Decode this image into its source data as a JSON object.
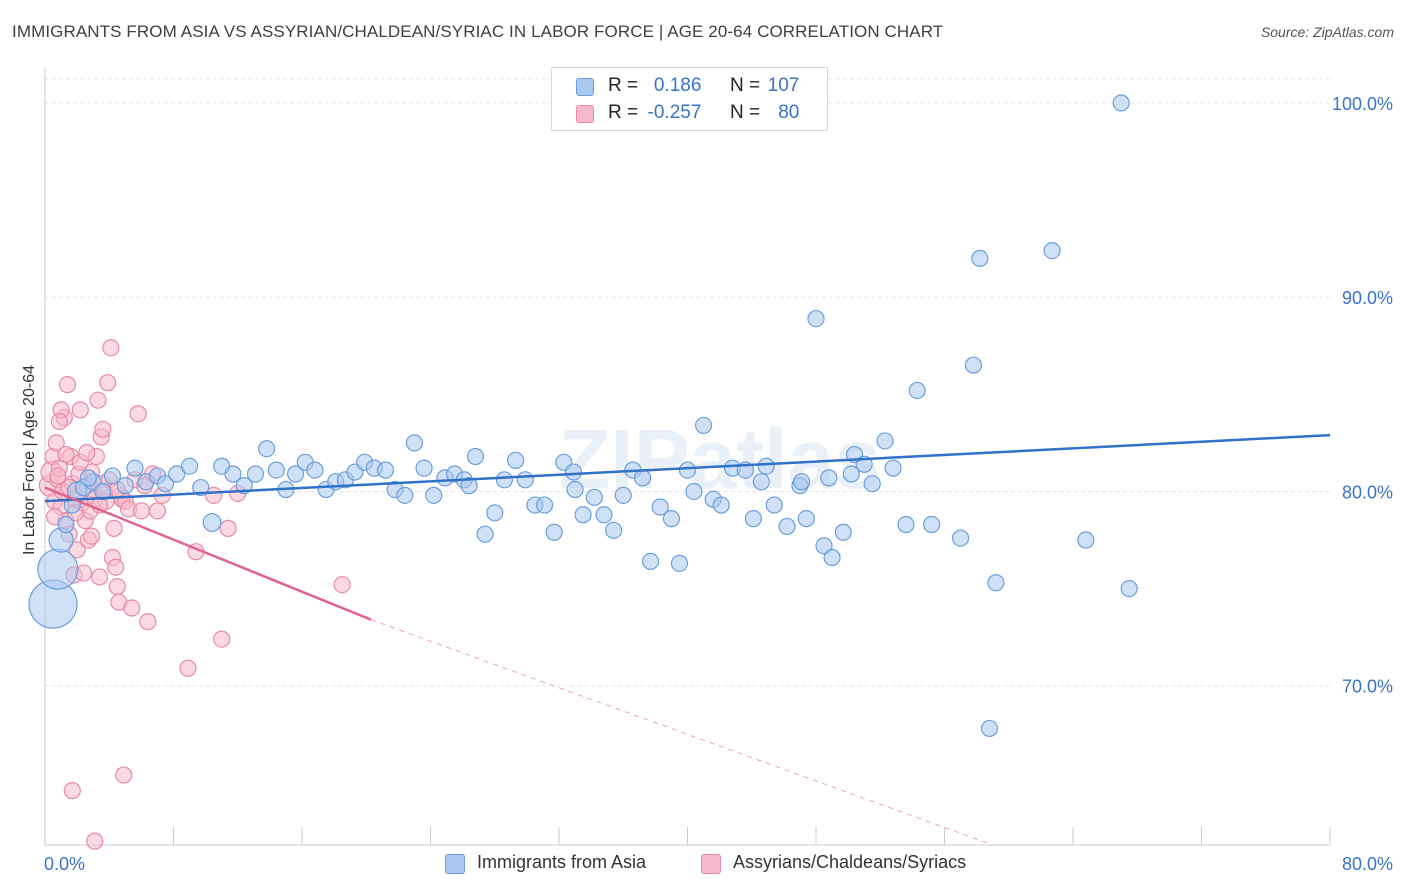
{
  "title": "IMMIGRANTS FROM ASIA VS ASSYRIAN/CHALDEAN/SYRIAC IN LABOR FORCE | AGE 20-64 CORRELATION CHART",
  "source": "Source: ZipAtlas.com",
  "watermark": "ZIPatlas",
  "legend_stats": [
    {
      "r_label": "R =",
      "r_value": "0.186",
      "n_label": "N =",
      "n_value": "107"
    },
    {
      "r_label": "R =",
      "r_value": "-0.257",
      "n_label": "N =",
      "n_value": "80"
    }
  ],
  "colors": {
    "blue_fill": "#a9c8f0",
    "blue_stroke": "#6b9fdc",
    "blue_line": "#2f72c8",
    "pink_fill": "#f5b9cb",
    "pink_stroke": "#e98aa8",
    "pink_line": "#e0648e",
    "grid": "#e6e6e6",
    "axis_label": "#3873c8"
  },
  "chart_data": {
    "type": "scatter",
    "title": "IMMIGRANTS FROM ASIA VS ASSYRIAN/CHALDEAN/SYRIAC IN LABOR FORCE | AGE 20-64 CORRELATION CHART",
    "xlabel": "",
    "ylabel": "In Labor Force | Age 20-64",
    "xlim": [
      0,
      80
    ],
    "ylim": [
      61.8,
      101.8
    ],
    "x_tick_labels": [
      "0.0%",
      "80.0%"
    ],
    "y_ticks": [
      70,
      80,
      90,
      100
    ],
    "y_tick_labels": [
      "70.0%",
      "80.0%",
      "90.0%",
      "100.0%"
    ],
    "grid": true,
    "legend_position": "bottom",
    "series": [
      {
        "name": "Immigrants from Asia",
        "color": "#6b9fdc",
        "r": 0.186,
        "n": 107,
        "trend": {
          "x": [
            0,
            80
          ],
          "y": [
            79.5,
            82.9
          ]
        },
        "points": [
          [
            0.5,
            74.2,
            3
          ],
          [
            0.8,
            76.0,
            2.5
          ],
          [
            1.0,
            77.5,
            1.5
          ],
          [
            1.3,
            78.3,
            1
          ],
          [
            1.7,
            79.3,
            1
          ],
          [
            2.0,
            80.0,
            1.2
          ],
          [
            2.4,
            80.2,
            1
          ],
          [
            3.0,
            80.5,
            1
          ],
          [
            3.6,
            80.0,
            1
          ],
          [
            4.2,
            80.8,
            1
          ],
          [
            5.0,
            80.3,
            1
          ],
          [
            5.6,
            81.2,
            1
          ],
          [
            6.3,
            80.5,
            1
          ],
          [
            7.0,
            80.8,
            1
          ],
          [
            7.5,
            80.4,
            1
          ],
          [
            8.2,
            80.9,
            1
          ],
          [
            9.0,
            81.3,
            1
          ],
          [
            9.7,
            80.2,
            1
          ],
          [
            10.4,
            78.4,
            1.1
          ],
          [
            11.0,
            81.3,
            1
          ],
          [
            11.7,
            80.9,
            1
          ],
          [
            12.4,
            80.3,
            1
          ],
          [
            13.1,
            80.9,
            1
          ],
          [
            13.8,
            82.2,
            1
          ],
          [
            14.4,
            81.1,
            1
          ],
          [
            15.0,
            80.1,
            1
          ],
          [
            15.6,
            80.9,
            1
          ],
          [
            16.2,
            81.5,
            1
          ],
          [
            16.8,
            81.1,
            1
          ],
          [
            17.5,
            80.1,
            1
          ],
          [
            18.1,
            80.5,
            1
          ],
          [
            18.7,
            80.6,
            1
          ],
          [
            19.3,
            81.0,
            1
          ],
          [
            19.9,
            81.5,
            1
          ],
          [
            20.5,
            81.2,
            1
          ],
          [
            21.2,
            81.1,
            1
          ],
          [
            21.8,
            80.1,
            1
          ],
          [
            22.4,
            79.8,
            1
          ],
          [
            23.0,
            82.5,
            1
          ],
          [
            23.6,
            81.2,
            1
          ],
          [
            24.2,
            79.8,
            1
          ],
          [
            24.9,
            80.7,
            1
          ],
          [
            25.5,
            80.9,
            1
          ],
          [
            26.1,
            80.6,
            1
          ],
          [
            26.8,
            81.8,
            1
          ],
          [
            27.4,
            77.8,
            1
          ],
          [
            28.0,
            78.9,
            1
          ],
          [
            28.6,
            80.6,
            1
          ],
          [
            29.3,
            81.6,
            1
          ],
          [
            29.9,
            80.6,
            1
          ],
          [
            30.5,
            79.3,
            1
          ],
          [
            31.1,
            79.3,
            1
          ],
          [
            31.7,
            77.9,
            1
          ],
          [
            32.3,
            81.5,
            1
          ],
          [
            32.9,
            81.0,
            1
          ],
          [
            33.5,
            78.8,
            1
          ],
          [
            34.2,
            79.7,
            1
          ],
          [
            34.8,
            78.8,
            1
          ],
          [
            35.4,
            78.0,
            1
          ],
          [
            36.0,
            79.8,
            1
          ],
          [
            36.6,
            81.1,
            1
          ],
          [
            37.2,
            80.7,
            1
          ],
          [
            37.7,
            76.4,
            1
          ],
          [
            38.3,
            79.2,
            1
          ],
          [
            39.0,
            78.6,
            1
          ],
          [
            39.5,
            76.3,
            1
          ],
          [
            40.0,
            81.1,
            1
          ],
          [
            40.4,
            80.0,
            1
          ],
          [
            41.0,
            83.4,
            1
          ],
          [
            41.6,
            79.6,
            1
          ],
          [
            42.1,
            79.3,
            1
          ],
          [
            42.8,
            81.2,
            1
          ],
          [
            43.6,
            81.1,
            1
          ],
          [
            44.1,
            78.6,
            1
          ],
          [
            44.9,
            81.3,
            1
          ],
          [
            45.4,
            79.3,
            1
          ],
          [
            46.2,
            78.2,
            1
          ],
          [
            47.0,
            80.3,
            1
          ],
          [
            47.4,
            78.6,
            1
          ],
          [
            48.0,
            88.9,
            1
          ],
          [
            48.5,
            77.2,
            1
          ],
          [
            49.0,
            76.6,
            1
          ],
          [
            49.7,
            77.9,
            1
          ],
          [
            50.4,
            81.9,
            1
          ],
          [
            51.0,
            81.4,
            1
          ],
          [
            51.5,
            80.4,
            1
          ],
          [
            52.3,
            82.6,
            1
          ],
          [
            52.8,
            81.2,
            1
          ],
          [
            53.6,
            78.3,
            1
          ],
          [
            54.3,
            85.2,
            1
          ],
          [
            55.2,
            78.3,
            1
          ],
          [
            57.0,
            77.6,
            1
          ],
          [
            57.8,
            86.5,
            1
          ],
          [
            58.2,
            92.0,
            1
          ],
          [
            58.8,
            67.8,
            1
          ],
          [
            59.2,
            75.3,
            1
          ],
          [
            62.7,
            92.4,
            1
          ],
          [
            64.8,
            77.5,
            1
          ],
          [
            67.0,
            100.0,
            1
          ],
          [
            67.5,
            75.0,
            1
          ],
          [
            48.8,
            80.7,
            1
          ],
          [
            50.2,
            80.9,
            1
          ],
          [
            33.0,
            80.1,
            1
          ],
          [
            26.4,
            80.3,
            1
          ],
          [
            44.6,
            80.5,
            1
          ],
          [
            2.7,
            80.7,
            1
          ],
          [
            47.1,
            80.5,
            1
          ]
        ]
      },
      {
        "name": "Assyrians/Chaldeans/Syriacs",
        "color": "#e98aa8",
        "r": -0.257,
        "n": 80,
        "trend": {
          "x": [
            0,
            20.3
          ],
          "y": [
            80.2,
            73.4
          ]
        },
        "trend_dashed": {
          "x": [
            20.3,
            59.0
          ],
          "y": [
            73.4,
            60.8
          ]
        },
        "points": [
          [
            0.3,
            80.3,
            1.3
          ],
          [
            0.4,
            81.0,
            1.3
          ],
          [
            0.5,
            81.8,
            1
          ],
          [
            0.6,
            79.5,
            1
          ],
          [
            0.7,
            82.5,
            1
          ],
          [
            0.8,
            80.6,
            1
          ],
          [
            0.9,
            81.2,
            1
          ],
          [
            1.0,
            79.2,
            1
          ],
          [
            1.1,
            80.0,
            1
          ],
          [
            1.2,
            83.8,
            1
          ],
          [
            1.3,
            78.5,
            1
          ],
          [
            1.4,
            85.5,
            1
          ],
          [
            1.5,
            77.8,
            1
          ],
          [
            1.6,
            81.8,
            1
          ],
          [
            1.7,
            80.4,
            1
          ],
          [
            1.8,
            75.7,
            1
          ],
          [
            1.9,
            79.6,
            1
          ],
          [
            2.0,
            77.0,
            1
          ],
          [
            2.1,
            80.9,
            1
          ],
          [
            2.2,
            84.2,
            1
          ],
          [
            2.3,
            79.4,
            1
          ],
          [
            2.4,
            75.8,
            1
          ],
          [
            2.5,
            78.5,
            1
          ],
          [
            2.6,
            80.3,
            1
          ],
          [
            2.7,
            77.5,
            1
          ],
          [
            2.8,
            79.0,
            1
          ],
          [
            2.9,
            81.0,
            1
          ],
          [
            3.0,
            80.1,
            1
          ],
          [
            3.1,
            79.6,
            1
          ],
          [
            3.2,
            81.8,
            1
          ],
          [
            3.3,
            84.7,
            1
          ],
          [
            3.4,
            75.6,
            1
          ],
          [
            3.5,
            82.8,
            1
          ],
          [
            3.6,
            80.4,
            1
          ],
          [
            3.7,
            80.0,
            1
          ],
          [
            3.8,
            79.5,
            1
          ],
          [
            3.9,
            85.6,
            1
          ],
          [
            4.0,
            80.6,
            1
          ],
          [
            4.1,
            87.4,
            1
          ],
          [
            4.2,
            76.6,
            1
          ],
          [
            4.3,
            78.1,
            1
          ],
          [
            4.4,
            76.1,
            1
          ],
          [
            4.5,
            75.1,
            1
          ],
          [
            4.6,
            74.3,
            1
          ],
          [
            4.7,
            79.8,
            1
          ],
          [
            4.8,
            79.6,
            1
          ],
          [
            4.9,
            65.4,
            1
          ],
          [
            5.0,
            79.5,
            1
          ],
          [
            5.2,
            79.1,
            1
          ],
          [
            5.4,
            74.0,
            1
          ],
          [
            5.6,
            80.6,
            1
          ],
          [
            5.8,
            84.0,
            1
          ],
          [
            6.0,
            79.0,
            1
          ],
          [
            6.4,
            73.3,
            1
          ],
          [
            6.7,
            80.9,
            1
          ],
          [
            7.0,
            79.0,
            1
          ],
          [
            7.3,
            79.8,
            1
          ],
          [
            8.9,
            70.9,
            1
          ],
          [
            9.4,
            76.9,
            1
          ],
          [
            10.5,
            79.8,
            1
          ],
          [
            11.0,
            72.4,
            1
          ],
          [
            11.4,
            78.1,
            1
          ],
          [
            12.0,
            79.9,
            1
          ],
          [
            18.5,
            75.2,
            1
          ],
          [
            1.7,
            64.6,
            1
          ],
          [
            3.1,
            62.0,
            1
          ],
          [
            2.2,
            81.5,
            1
          ],
          [
            1.0,
            84.2,
            1
          ],
          [
            0.8,
            80.8,
            1
          ],
          [
            3.6,
            83.2,
            1
          ],
          [
            1.5,
            80.2,
            1
          ],
          [
            2.6,
            82.0,
            1
          ],
          [
            4.5,
            80.1,
            1
          ],
          [
            1.9,
            78.9,
            1
          ],
          [
            0.6,
            78.7,
            1
          ],
          [
            2.9,
            77.7,
            1
          ],
          [
            6.2,
            80.3,
            1
          ],
          [
            1.3,
            81.9,
            1
          ],
          [
            3.4,
            79.3,
            1
          ],
          [
            0.9,
            83.6,
            1
          ]
        ]
      }
    ]
  },
  "legend_bottom": [
    "Immigrants from Asia",
    "Assyrians/Chaldeans/Syriacs"
  ]
}
